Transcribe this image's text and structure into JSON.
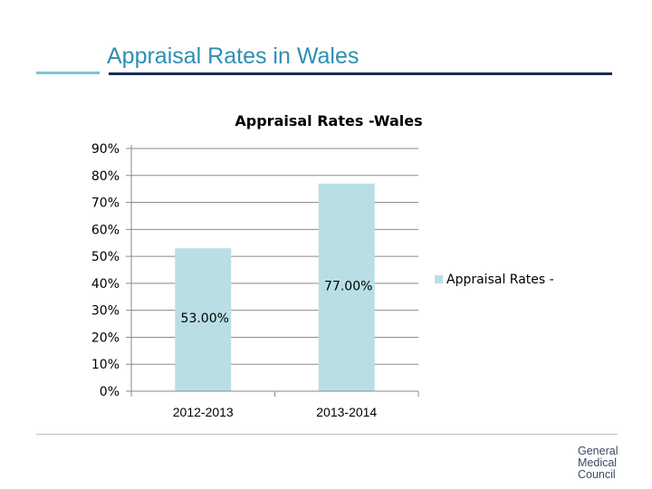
{
  "slide": {
    "title": "Appraisal Rates in Wales"
  },
  "logo": {
    "lines": [
      "General",
      "Medical",
      "Council"
    ]
  },
  "colors": {
    "title": "#2e8fb1",
    "bar": "#b9dfe4",
    "rule_dark": "#1b2a57",
    "rule_light": "#7cc4d8"
  },
  "chart_data": {
    "type": "bar",
    "title": "Appraisal Rates -Wales",
    "categories": [
      "2012-2013",
      "2013-2014"
    ],
    "series": [
      {
        "name": "Appraisal Rates -",
        "values": [
          53.0,
          77.0
        ],
        "data_labels": [
          "53.00%",
          "77.00%"
        ]
      }
    ],
    "y_ticks": [
      "0%",
      "10%",
      "20%",
      "30%",
      "40%",
      "50%",
      "60%",
      "70%",
      "80%",
      "90%"
    ],
    "ylim": [
      0,
      90
    ],
    "xlabel": "",
    "ylabel": "",
    "legend": "right",
    "grid": true
  }
}
